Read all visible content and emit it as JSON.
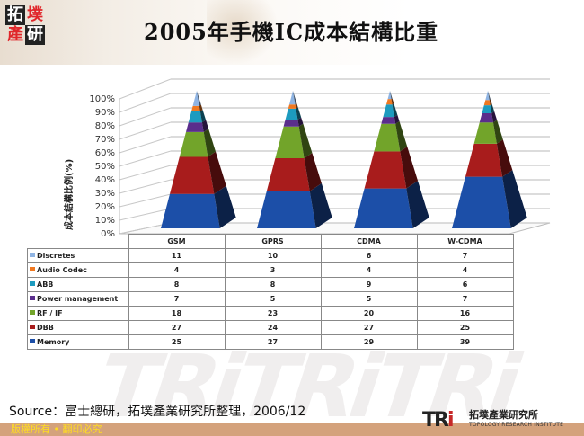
{
  "header": {
    "logo_chars": [
      "拓",
      "墣",
      "產",
      "研"
    ],
    "title": "2005年手機IC成本結構比重"
  },
  "colors": {
    "Discretes": "#8fb4e3",
    "Audio Codec": "#f07820",
    "ABB": "#1d9bbf",
    "Power management": "#5a2d8c",
    "RF / IF": "#72a42a",
    "DBB": "#a81c1c",
    "Memory": "#1c4fa8"
  },
  "chart_data": {
    "type": "bar",
    "subtype": "3d-stacked-pyramid-100pct",
    "title": "2005年手機IC成本結構比重",
    "xlabel": "",
    "ylabel": "成本結構比例(%)",
    "ylim": [
      0,
      100
    ],
    "yticks": [
      "0%",
      "10%",
      "20%",
      "30%",
      "40%",
      "50%",
      "60%",
      "70%",
      "80%",
      "90%",
      "100%"
    ],
    "grid": true,
    "legend_position": "data-table",
    "categories": [
      "GSM",
      "GPRS",
      "CDMA",
      "W-CDMA"
    ],
    "series": [
      {
        "name": "Memory",
        "values": [
          25,
          27,
          29,
          39
        ]
      },
      {
        "name": "DBB",
        "values": [
          27,
          24,
          27,
          25
        ]
      },
      {
        "name": "RF / IF",
        "values": [
          18,
          23,
          20,
          16
        ]
      },
      {
        "name": "Power management",
        "values": [
          7,
          5,
          5,
          7
        ]
      },
      {
        "name": "ABB",
        "values": [
          8,
          8,
          9,
          6
        ]
      },
      {
        "name": "Audio Codec",
        "values": [
          4,
          3,
          4,
          4
        ]
      },
      {
        "name": "Discretes",
        "values": [
          11,
          10,
          6,
          7
        ]
      }
    ]
  },
  "table": {
    "columns": [
      "GSM",
      "GPRS",
      "CDMA",
      "W-CDMA"
    ],
    "rows": [
      {
        "name": "Discretes",
        "values": [
          "11",
          "10",
          "6",
          "7"
        ]
      },
      {
        "name": "Audio Codec",
        "values": [
          "4",
          "3",
          "4",
          "4"
        ]
      },
      {
        "name": "ABB",
        "values": [
          "8",
          "8",
          "9",
          "6"
        ]
      },
      {
        "name": "Power management",
        "values": [
          "7",
          "5",
          "5",
          "7"
        ]
      },
      {
        "name": "RF / IF",
        "values": [
          "18",
          "23",
          "20",
          "16"
        ]
      },
      {
        "name": "DBB",
        "values": [
          "27",
          "24",
          "27",
          "25"
        ]
      },
      {
        "name": "Memory",
        "values": [
          "25",
          "27",
          "29",
          "39"
        ]
      }
    ]
  },
  "footer": {
    "source": "Source：富士總研，拓墣產業研究所整理，2006/12",
    "copyright": "版權所有 • 翻印必究",
    "tri_mark_1": "TR",
    "tri_mark_2": "i",
    "tri_cn": "拓墣產業研究所",
    "tri_en": "TOPOLOGY RESEARCH INSTITUTE"
  }
}
